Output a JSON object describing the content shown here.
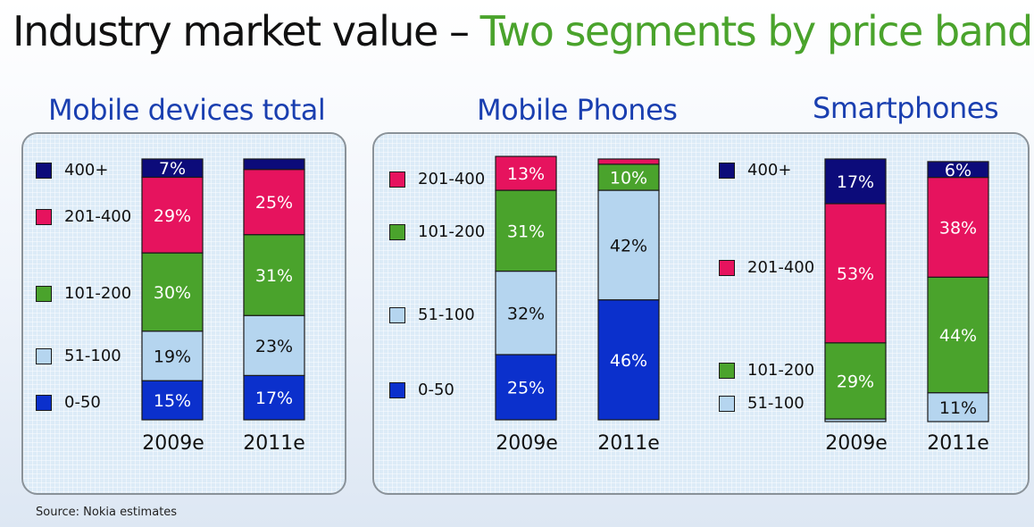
{
  "title": {
    "main": "Industry market value – ",
    "highlight": "Two segments by price band"
  },
  "colors": {
    "0-50": "#0b30cc",
    "51-100": "#b5d5ef",
    "101-200": "#4aa32c",
    "201-400": "#e6135e",
    "400+": "#0c0b7a"
  },
  "chart_data": [
    {
      "type": "bar",
      "stacked": true,
      "title": "Mobile devices total",
      "categories": [
        "2009e",
        "2011e"
      ],
      "series": [
        {
          "name": "0-50",
          "values": [
            15,
            17
          ],
          "labels": [
            "15%",
            "17%"
          ]
        },
        {
          "name": "51-100",
          "values": [
            19,
            23
          ],
          "labels": [
            "19%",
            "23%"
          ]
        },
        {
          "name": "101-200",
          "values": [
            30,
            31
          ],
          "labels": [
            "30%",
            "31%"
          ]
        },
        {
          "name": "201-400",
          "values": [
            29,
            25
          ],
          "labels": [
            "29%",
            "25%"
          ]
        },
        {
          "name": "400+",
          "values": [
            7,
            4
          ],
          "labels": [
            "7%",
            ""
          ]
        }
      ],
      "legend": [
        "400+",
        "201-400",
        "101-200",
        "51-100",
        "0-50"
      ],
      "ylim": [
        0,
        100
      ]
    },
    {
      "type": "bar",
      "stacked": true,
      "title": "Mobile Phones",
      "categories": [
        "2009e",
        "2011e"
      ],
      "series": [
        {
          "name": "0-50",
          "values": [
            25,
            46
          ],
          "labels": [
            "25%",
            "46%"
          ]
        },
        {
          "name": "51-100",
          "values": [
            32,
            42
          ],
          "labels": [
            "32%",
            "42%"
          ]
        },
        {
          "name": "101-200",
          "values": [
            31,
            10
          ],
          "labels": [
            "31%",
            "10%"
          ]
        },
        {
          "name": "201-400",
          "values": [
            13,
            2
          ],
          "labels": [
            "13%",
            ""
          ]
        }
      ],
      "legend": [
        "201-400",
        "101-200",
        "51-100",
        "0-50"
      ],
      "ylim": [
        0,
        100
      ]
    },
    {
      "type": "bar",
      "stacked": true,
      "title": "Smartphones",
      "categories": [
        "2009e",
        "2011e"
      ],
      "series": [
        {
          "name": "51-100",
          "values": [
            1,
            11
          ],
          "labels": [
            "",
            "11%"
          ]
        },
        {
          "name": "101-200",
          "values": [
            29,
            44
          ],
          "labels": [
            "29%",
            "44%"
          ]
        },
        {
          "name": "201-400",
          "values": [
            53,
            38
          ],
          "labels": [
            "53%",
            "38%"
          ]
        },
        {
          "name": "400+",
          "values": [
            17,
            6
          ],
          "labels": [
            "17%",
            "6%"
          ]
        }
      ],
      "legend": [
        "400+",
        "201-400",
        "101-200",
        "51-100"
      ],
      "ylim": [
        0,
        100
      ]
    }
  ],
  "source": "Source: Nokia estimates"
}
